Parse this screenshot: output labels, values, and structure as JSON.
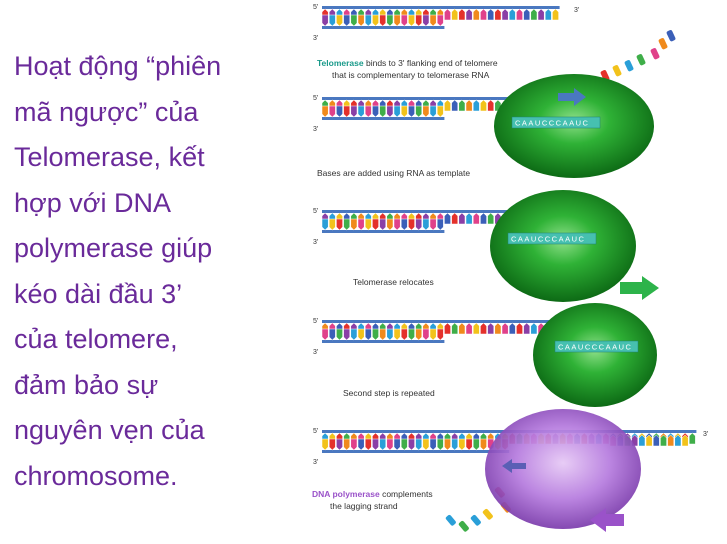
{
  "main_text": {
    "lines": [
      "Hoạt động “phiên",
      "mã ngược” của",
      "Telomerase, kết",
      "hợp với DNA",
      "polymerase giúp",
      "kéo dài đầu 3’",
      "của telomere,",
      "đảm bảo sự",
      "nguyên vẹn của",
      "chromosome."
    ]
  },
  "diagram": {
    "step1_caption_bold": "Telomerase",
    "step1_caption_rest": " binds to 3' flanking end of telomere",
    "step1_caption_line2": "that is complementary to telomerase RNA",
    "step2_caption": "Bases are added using RNA as template",
    "step3_caption": "Telomerase relocates",
    "step4_caption": "Second step is repeated",
    "step5_caption_bold": "DNA polymerase",
    "step5_caption_rest": " complements",
    "step5_caption_line2": "the lagging strand",
    "end_5": "5'",
    "end_3": "3'",
    "rna_template": "CAAUCCCAAUC",
    "colors": {
      "title_text": "#6a2a9a",
      "telomerase_green": "#1fa82c",
      "polymerase_purple": "#9a52c9",
      "backbone_blue": "#4a78c0",
      "arrow_green": "#2db34a",
      "arrow_purple": "#9a52c9",
      "caption_teal": "#1a9a8a"
    }
  }
}
